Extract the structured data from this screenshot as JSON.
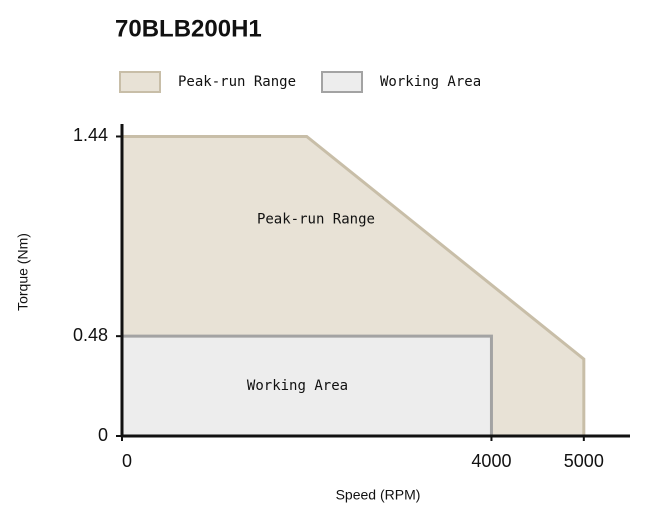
{
  "chart_data": {
    "type": "area",
    "title": "70BLB200H1",
    "xlabel": "Speed (RPM)",
    "ylabel": "Torque (Nm)",
    "xlim": [
      0,
      5500
    ],
    "xticks": [
      0,
      4000,
      5000
    ],
    "ylim": [
      0,
      1.5
    ],
    "yticks": [
      0,
      0.48,
      1.44
    ],
    "series": [
      {
        "name": "Peak-run Range",
        "color": "#e8e2d6",
        "stroke": "#c8bea8",
        "x": [
          0,
          2000,
          5000,
          5000
        ],
        "values": [
          1.44,
          1.44,
          0.37,
          0
        ]
      },
      {
        "name": "Working Area",
        "color": "#ededed",
        "stroke": "#a3a3a3",
        "x": [
          0,
          4000,
          4000
        ],
        "values": [
          0.48,
          0.48,
          0
        ]
      }
    ],
    "annotations": [
      {
        "text": "Peak-run Range",
        "x": 2100,
        "y": 1.04
      },
      {
        "text": "Working Area",
        "x": 1900,
        "y": 0.24
      }
    ]
  }
}
